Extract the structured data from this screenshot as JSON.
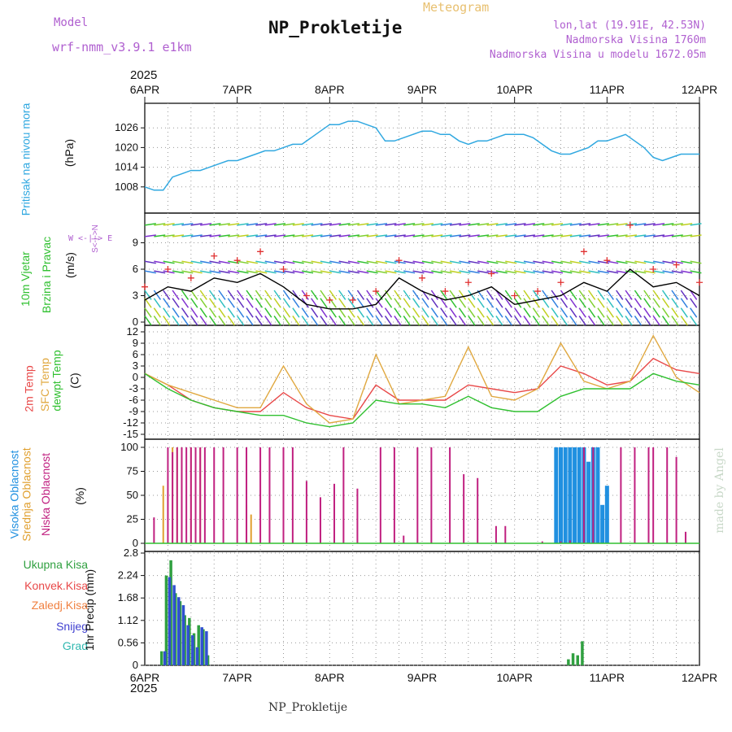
{
  "header": {
    "model_label": "Model",
    "model_name": "wrf-nmm_v3.9.1  e1km",
    "meteogram_label": "Meteogram",
    "station_title": "NP_Prokletije",
    "coords": "lon,lat (19.91E, 42.53N)",
    "altitude": "Nadmorska Visina 1760m",
    "model_altitude": "Nadmorska Visina u modelu 1672.05m",
    "year": "2025",
    "footer_station": "NP_Prokletije",
    "credit": "made by Angel"
  },
  "time_axis": {
    "labels": [
      "6APR",
      "7APR",
      "8APR",
      "9APR",
      "10APR",
      "11APR",
      "12APR"
    ]
  },
  "panel_labels": {
    "pressure": {
      "title": "Pritisak na nivou mora",
      "unit": "(hPa)"
    },
    "wind": {
      "title1": "10m Vjetar",
      "title2": "Brzina i Pravac",
      "unit": "(m/s)",
      "compass": "W  <-|->  E",
      "compass_ns": "S<-|->N"
    },
    "temp": {
      "t2m": "2m Temp",
      "sfc": "SFC Temp",
      "dew": "dewpt Temp",
      "unit": "(C)"
    },
    "cloud": {
      "high": "Visoka Oblacnost",
      "mid": "Srednja Oblacnost",
      "low": "Niska Oblacnost",
      "unit": "(%)"
    },
    "precip": {
      "total": "Ukupna Kisa",
      "conv": "Konvek.Kisa",
      "frozen": "Zaledj.Kisa",
      "snow": "Snijeg",
      "hail": "Grad",
      "unit": "1hr Precip (mm)"
    }
  },
  "colors": {
    "pressure": "#30a8e0",
    "wind_speed": "#000000",
    "gust": "#e03030",
    "t2m": "#e84848",
    "sfc": "#e0a840",
    "dew": "#30c030",
    "cloud_high": "#2090e0",
    "cloud_mid": "#e0a030",
    "cloud_low": "#c02080",
    "precip_total": "#30a040",
    "precip_snow": "#3050d0"
  },
  "chart_data": [
    {
      "type": "line",
      "name": "pressure",
      "ylim": [
        1002,
        1032
      ],
      "yticks": [
        1008,
        1014,
        1020,
        1026
      ],
      "x_days": [
        0,
        0.1,
        0.2,
        0.3,
        0.4,
        0.5,
        0.6,
        0.7,
        0.8,
        0.9,
        1.0,
        1.1,
        1.2,
        1.3,
        1.4,
        1.5,
        1.6,
        1.7,
        1.8,
        1.9,
        2.0,
        2.1,
        2.2,
        2.3,
        2.4,
        2.5,
        2.6,
        2.7,
        2.8,
        2.9,
        3.0,
        3.1,
        3.2,
        3.3,
        3.4,
        3.5,
        3.6,
        3.7,
        3.8,
        3.9,
        4.0,
        4.1,
        4.2,
        4.3,
        4.4,
        4.5,
        4.6,
        4.7,
        4.8,
        4.9,
        5.0,
        5.1,
        5.2,
        5.3,
        5.4,
        5.5,
        5.6,
        5.7,
        5.8,
        5.9,
        6.0
      ],
      "values": [
        1008,
        1007,
        1007,
        1011,
        1012,
        1013,
        1013,
        1014,
        1015,
        1016,
        1016,
        1017,
        1018,
        1019,
        1019,
        1020,
        1021,
        1021,
        1023,
        1025,
        1027,
        1027,
        1028,
        1028,
        1027,
        1026,
        1022,
        1022,
        1023,
        1024,
        1025,
        1025,
        1024,
        1024,
        1022,
        1021,
        1022,
        1022,
        1023,
        1024,
        1024,
        1024,
        1023,
        1021,
        1019,
        1018,
        1018,
        1019,
        1020,
        1022,
        1022,
        1023,
        1024,
        1022,
        1020,
        1017,
        1016,
        1017,
        1018,
        1018,
        1018
      ]
    },
    {
      "type": "line",
      "name": "wind",
      "ylim": [
        0,
        12
      ],
      "yticks": [
        0,
        3,
        6,
        9
      ],
      "x_days": [
        0,
        0.25,
        0.5,
        0.75,
        1.0,
        1.25,
        1.5,
        1.75,
        2.0,
        2.25,
        2.5,
        2.75,
        3.0,
        3.25,
        3.5,
        3.75,
        4.0,
        4.25,
        4.5,
        4.75,
        5.0,
        5.25,
        5.5,
        5.75,
        6.0
      ],
      "wind_speed": [
        2.5,
        4,
        3.5,
        5,
        4.5,
        5.5,
        4,
        2,
        1.5,
        1.5,
        2,
        5,
        3.5,
        2.5,
        3,
        4,
        2,
        2.5,
        3,
        4.5,
        3.5,
        6,
        4,
        4.5,
        3
      ],
      "gust": [
        4,
        6,
        5,
        7.5,
        7,
        8,
        6,
        3,
        2.5,
        2.5,
        3.5,
        7,
        5,
        3.5,
        4.5,
        5.5,
        3,
        3.5,
        4.5,
        8,
        7,
        11,
        6,
        6.5,
        4.5
      ]
    },
    {
      "type": "line",
      "name": "temperature",
      "ylim": [
        -15,
        12
      ],
      "yticks": [
        -15,
        -12,
        -9,
        -6,
        -3,
        0,
        3,
        6,
        9,
        12
      ],
      "x_days": [
        0,
        0.25,
        0.5,
        0.75,
        1.0,
        1.25,
        1.5,
        1.75,
        2.0,
        2.25,
        2.5,
        2.75,
        3.0,
        3.25,
        3.5,
        3.75,
        4.0,
        4.25,
        4.5,
        4.75,
        5.0,
        5.25,
        5.5,
        5.75,
        6.0
      ],
      "series": [
        {
          "name": "2m Temp",
          "values": [
            1,
            -2,
            -6,
            -8,
            -9,
            -9,
            -4,
            -8,
            -10,
            -11,
            -2,
            -6,
            -6,
            -6,
            -2,
            -3,
            -4,
            -3,
            3,
            1,
            -2,
            -1,
            5,
            2,
            1
          ]
        },
        {
          "name": "SFC Temp",
          "values": [
            1,
            -2,
            -4,
            -6,
            -8,
            -8,
            3,
            -7,
            -12,
            -11,
            6,
            -7,
            -6,
            -5,
            8,
            -5,
            -6,
            -3,
            9,
            -1,
            -3,
            -1,
            11,
            0,
            -4
          ]
        },
        {
          "name": "dewpt Temp",
          "values": [
            1,
            -3,
            -6,
            -8,
            -9,
            -10,
            -10,
            -12,
            -13,
            -12,
            -6,
            -7,
            -7,
            -8,
            -5,
            -8,
            -9,
            -9,
            -5,
            -3,
            -3,
            -3,
            1,
            -1,
            -2
          ]
        }
      ]
    },
    {
      "type": "bar",
      "name": "cloud_cover",
      "ylim": [
        0,
        100
      ],
      "yticks": [
        0,
        25,
        50,
        75,
        100
      ],
      "series": [
        {
          "name": "Niska Oblacnost",
          "x_days": [
            0.1,
            0.25,
            0.3,
            0.35,
            0.4,
            0.45,
            0.5,
            0.55,
            0.6,
            0.65,
            0.75,
            0.85,
            1.0,
            1.1,
            1.25,
            1.35,
            1.5,
            1.6,
            1.75,
            1.9,
            2.05,
            2.15,
            2.3,
            2.55,
            2.7,
            2.8,
            2.95,
            3.1,
            3.3,
            3.45,
            3.6,
            3.8,
            3.9,
            4.3,
            4.5,
            4.6,
            4.75,
            4.85,
            5.15,
            5.3,
            5.45,
            5.5,
            5.65,
            5.75,
            5.85
          ],
          "values": [
            27,
            100,
            95,
            100,
            100,
            100,
            100,
            100,
            100,
            100,
            100,
            100,
            100,
            100,
            100,
            100,
            100,
            100,
            65,
            48,
            62,
            100,
            57,
            100,
            100,
            8,
            100,
            100,
            100,
            72,
            68,
            18,
            18,
            2,
            2,
            3,
            100,
            100,
            100,
            100,
            100,
            100,
            100,
            90,
            12
          ]
        },
        {
          "name": "Srednja Oblacnost",
          "x_days": [
            0.2,
            0.3,
            0.35,
            0.4,
            0.5,
            0.55,
            0.6,
            1.1,
            1.15
          ],
          "values": [
            60,
            100,
            100,
            100,
            100,
            100,
            100,
            40,
            30
          ]
        },
        {
          "name": "Visoka Oblacnost",
          "x_days": [
            4.45,
            4.5,
            4.55,
            4.6,
            4.65,
            4.7,
            4.75,
            4.8,
            4.85,
            4.9,
            4.95,
            5.0
          ],
          "values": [
            100,
            100,
            100,
            100,
            100,
            100,
            100,
            85,
            100,
            100,
            40,
            60
          ]
        }
      ]
    },
    {
      "type": "bar",
      "name": "precipitation",
      "ylim": [
        0,
        2.8
      ],
      "yticks": [
        0,
        0.56,
        1.12,
        1.68,
        2.24,
        2.8
      ],
      "series": [
        {
          "name": "Ukupna Kisa",
          "x_days": [
            0.2,
            0.25,
            0.3,
            0.35,
            0.4,
            0.45,
            0.5,
            0.55,
            0.6,
            0.65,
            0.7,
            4.6,
            4.65,
            4.7,
            4.75
          ],
          "values": [
            0.35,
            2.24,
            2.62,
            1.8,
            1.6,
            1.25,
            1.18,
            0.8,
            1.0,
            0.9,
            0.25,
            0.15,
            0.3,
            0.25,
            0.6
          ]
        },
        {
          "name": "Snijeg",
          "x_days": [
            0.2,
            0.25,
            0.3,
            0.35,
            0.4,
            0.45,
            0.5,
            0.55,
            0.6,
            0.65
          ],
          "values": [
            0.35,
            2.2,
            2.0,
            1.7,
            1.5,
            1.0,
            0.75,
            0.45,
            0.95,
            0.85
          ]
        }
      ]
    }
  ]
}
